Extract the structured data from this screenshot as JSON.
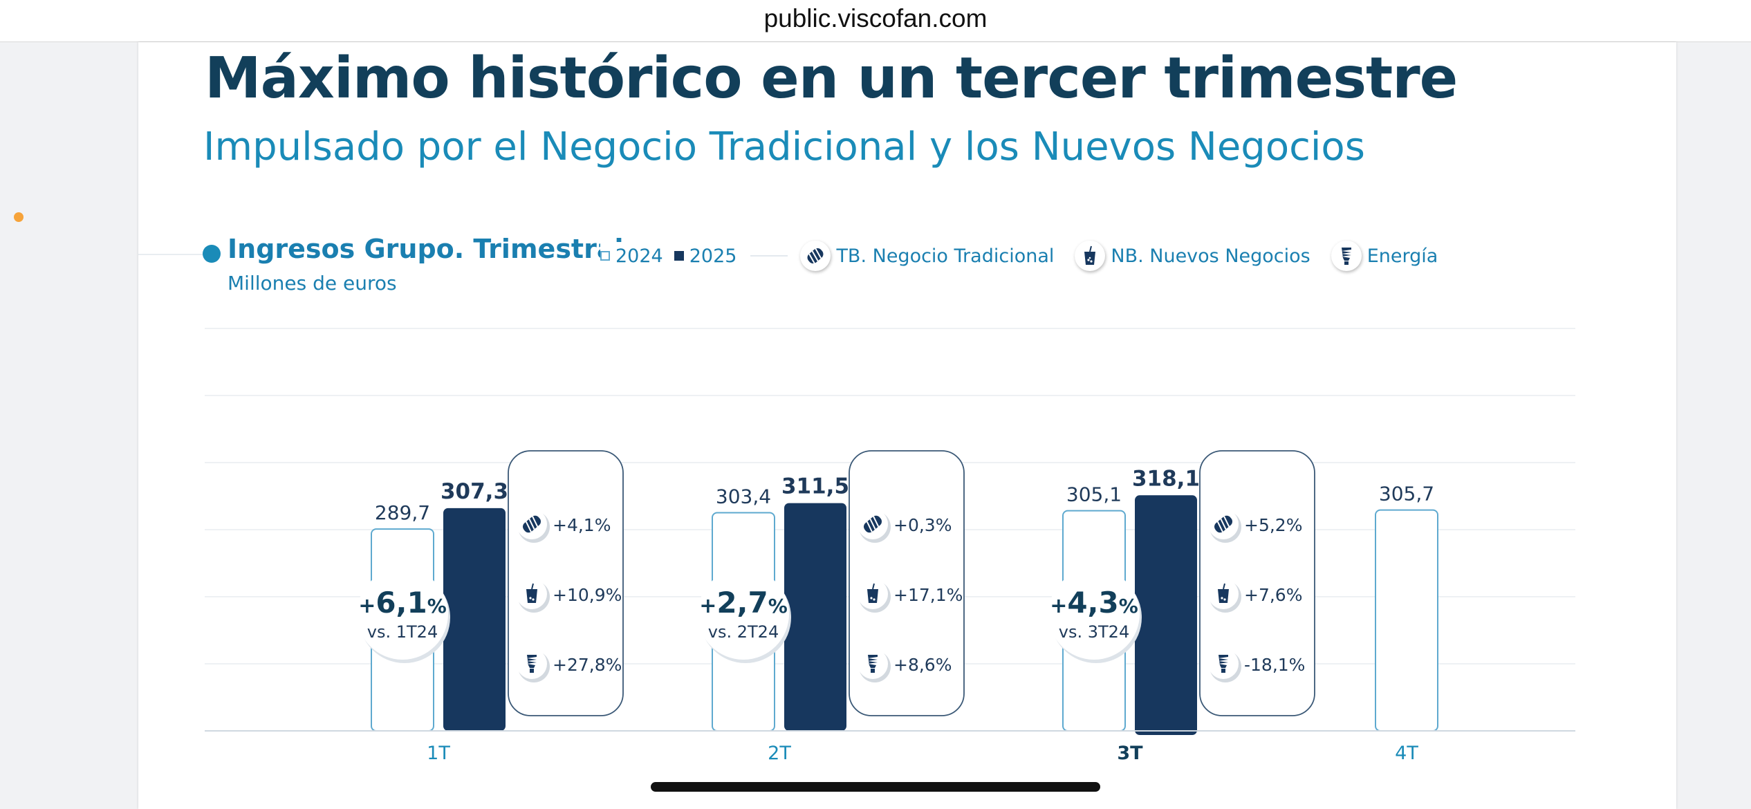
{
  "browser": {
    "url": "public.viscofan.com"
  },
  "slide": {
    "title": "Máximo histórico en un tercer trimestre",
    "subtitle": "Impulsado por el Negocio Tradicional y los Nuevos Negocios"
  },
  "legend": {
    "y2024": "2024",
    "y2025": "2025",
    "tb": "TB. Negocio Tradicional",
    "nb": "NB. Nuevos Negocios",
    "energia": "Energía"
  },
  "icons": {
    "tb": "sausage-casing-icon",
    "nb": "drink-cup-icon",
    "energia": "lightbulb-icon"
  },
  "colors": {
    "title": "#123f5a",
    "accent": "#1a8bb8",
    "bar_2025": "#17375e",
    "bar_2024_border": "#5ea9cf",
    "text_dark": "#1f3a5a",
    "highlight_dot": "#f6a33a"
  },
  "chart_data": {
    "type": "bar",
    "title": "Ingresos Grupo. Trimestral",
    "unit": "Millones de euros",
    "categories": [
      "1T",
      "2T",
      "3T",
      "4T"
    ],
    "highlight_category": "3T",
    "series": [
      {
        "name": "2024",
        "values": [
          289.7,
          303.4,
          305.1,
          305.7
        ],
        "labels": [
          "289,7",
          "303,4",
          "305,1",
          "305,7"
        ]
      },
      {
        "name": "2025",
        "values": [
          307.3,
          311.5,
          318.1,
          null
        ],
        "labels": [
          "307,3",
          "311,5",
          "318,1",
          ""
        ]
      }
    ],
    "ylim": [
      0,
      320
    ],
    "grid": true,
    "annotations": [
      {
        "category": "1T",
        "growth_value": "6,1",
        "vs": "vs. 1T24",
        "tb": "+4,1%",
        "nb": "+10,9%",
        "energia": "+27,8%"
      },
      {
        "category": "2T",
        "growth_value": "2,7",
        "vs": "vs. 2T24",
        "tb": "+0,3%",
        "nb": "+17,1%",
        "energia": "+8,6%"
      },
      {
        "category": "3T",
        "growth_value": "4,3",
        "vs": "vs. 3T24",
        "tb": "+5,2%",
        "nb": "+7,6%",
        "energia": "-18,1%"
      }
    ]
  }
}
